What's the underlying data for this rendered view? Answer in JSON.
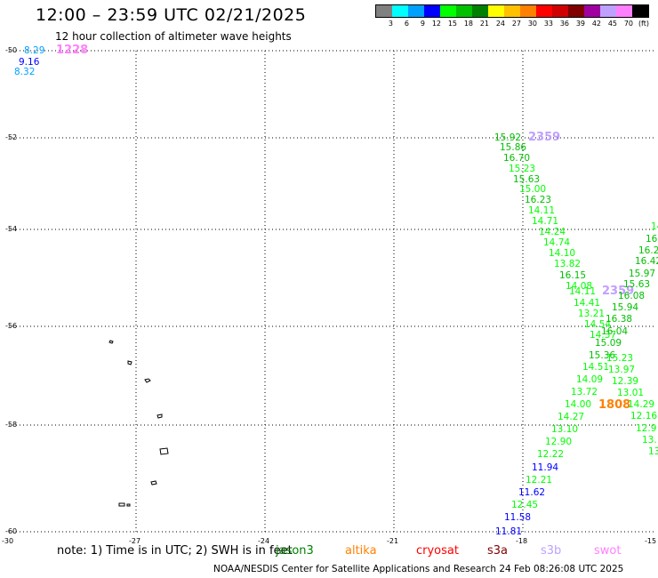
{
  "title": "12:00 – 23:59 UTC 02/21/2025",
  "subtitle": "12 hour collection of altimeter wave heights",
  "legend": {
    "colors": [
      "#808080",
      "#00ffff",
      "#00a0ff",
      "#0000ff",
      "#00ff00",
      "#00c000",
      "#008000",
      "#ffff00",
      "#ffc000",
      "#ff8000",
      "#ff0000",
      "#d00000",
      "#800000",
      "#a000a0",
      "#c0a0ff",
      "#ff80ff",
      "#000000"
    ],
    "labels": [
      "3",
      "6",
      "9",
      "12",
      "15",
      "18",
      "21",
      "24",
      "27",
      "30",
      "33",
      "36",
      "39",
      "42",
      "45",
      "70",
      "(ft)"
    ]
  },
  "axes": {
    "lon_ticks": [
      "-30",
      "-27",
      "-24",
      "-21",
      "-18",
      "-15"
    ],
    "lat_ticks": [
      "-50",
      "-52",
      "-54",
      "-56",
      "-58",
      "-60"
    ]
  },
  "note_text": "note:  1) Time is in UTC;  2) SWH is in feet",
  "satellites": [
    {
      "name": "jason3",
      "color": "#008000"
    },
    {
      "name": "altika",
      "color": "#ff8000"
    },
    {
      "name": "cryosat",
      "color": "#ff0000"
    },
    {
      "name": "s3a",
      "color": "#800000"
    },
    {
      "name": "s3b",
      "color": "#c0a0ff"
    },
    {
      "name": "swot",
      "color": "#ff80ff"
    }
  ],
  "footer": "NOAA/NESDIS Center for Satellite Applications and Research    24 Feb 08:26:08 UTC 2025",
  "observations": [
    {
      "value": "8.29",
      "color": "#00a0ff"
    },
    {
      "value": "1228",
      "color": "#ff80ff"
    },
    {
      "value": "9.16",
      "color": "#0000ff"
    },
    {
      "value": "8.32",
      "color": "#00a0ff"
    },
    {
      "value": "15.92",
      "color": "#00c000"
    },
    {
      "value": "2359",
      "color": "#c0a0ff"
    },
    {
      "value": "15.86",
      "color": "#00c000"
    },
    {
      "value": "16.70",
      "color": "#00c000"
    },
    {
      "value": "15.23",
      "color": "#00ff00"
    },
    {
      "value": "15.63",
      "color": "#00c000"
    },
    {
      "value": "15.00",
      "color": "#00ff00"
    },
    {
      "value": "16.23",
      "color": "#00c000"
    },
    {
      "value": "14.11",
      "color": "#00ff00"
    },
    {
      "value": "14.71",
      "color": "#00ff00"
    },
    {
      "value": "14.24",
      "color": "#00ff00"
    },
    {
      "value": "14.74",
      "color": "#00ff00"
    },
    {
      "value": "14.10",
      "color": "#00ff00"
    },
    {
      "value": "13.82",
      "color": "#00ff00"
    },
    {
      "value": "16.15",
      "color": "#00c000"
    },
    {
      "value": "14.08",
      "color": "#00ff00"
    },
    {
      "value": "14.11",
      "color": "#00ff00"
    },
    {
      "value": "2359",
      "color": "#c0a0ff"
    },
    {
      "value": "14.41",
      "color": "#00ff00"
    },
    {
      "value": "13.21",
      "color": "#00ff00"
    },
    {
      "value": "14.54",
      "color": "#00ff00"
    },
    {
      "value": "14.37",
      "color": "#00ff00"
    },
    {
      "value": "15.09",
      "color": "#00c000"
    },
    {
      "value": "15.36",
      "color": "#00c000"
    },
    {
      "value": "14.51",
      "color": "#00ff00"
    },
    {
      "value": "14.09",
      "color": "#00ff00"
    },
    {
      "value": "13.72",
      "color": "#00ff00"
    },
    {
      "value": "14.00",
      "color": "#00ff00"
    },
    {
      "value": "14.27",
      "color": "#00ff00"
    },
    {
      "value": "13.10",
      "color": "#00ff00"
    },
    {
      "value": "12.90",
      "color": "#00ff00"
    },
    {
      "value": "12.22",
      "color": "#00ff00"
    },
    {
      "value": "11.94",
      "color": "#0000ff"
    },
    {
      "value": "12.21",
      "color": "#00ff00"
    },
    {
      "value": "11.62",
      "color": "#0000ff"
    },
    {
      "value": "12.45",
      "color": "#00ff00"
    },
    {
      "value": "11.58",
      "color": "#0000ff"
    },
    {
      "value": "11.81",
      "color": "#0000ff"
    },
    {
      "value": "16.2",
      "color": "#00c000"
    },
    {
      "value": "16.42",
      "color": "#00c000"
    },
    {
      "value": "15.97",
      "color": "#00c000"
    },
    {
      "value": "15.63",
      "color": "#00c000"
    },
    {
      "value": "16.08",
      "color": "#00c000"
    },
    {
      "value": "15.94",
      "color": "#00c000"
    },
    {
      "value": "16.38",
      "color": "#00c000"
    },
    {
      "value": "16.04",
      "color": "#00c000"
    },
    {
      "value": "15.23",
      "color": "#00ff00"
    },
    {
      "value": "13.97",
      "color": "#00ff00"
    },
    {
      "value": "12.39",
      "color": "#00ff00"
    },
    {
      "value": "13.01",
      "color": "#00ff00"
    },
    {
      "value": "1808",
      "color": "#ff8000"
    },
    {
      "value": "14.29",
      "color": "#00ff00"
    },
    {
      "value": "12.16",
      "color": "#00ff00"
    },
    {
      "value": "12.9",
      "color": "#00ff00"
    },
    {
      "value": "13.",
      "color": "#00ff00"
    },
    {
      "value": "13",
      "color": "#00ff00"
    },
    {
      "value": "16",
      "color": "#00c000"
    },
    {
      "value": "14",
      "color": "#00ff00"
    }
  ]
}
